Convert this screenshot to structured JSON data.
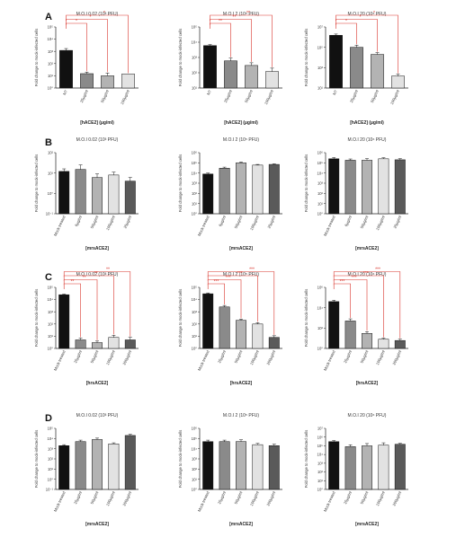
{
  "figure": {
    "rows": [
      {
        "letter": "A",
        "x_title": "[hACE2] (µg/ml)",
        "panels": [
          {
            "type": "bar",
            "title": "M.O.I 0.02 (10³ PFU)",
            "ylabel": "Fold change to mock-infected cells",
            "log_scale": true,
            "ylim": [
              1,
              100000
            ],
            "yticks": [
              "10⁰",
              "10¹",
              "10²",
              "10³",
              "10⁴",
              "10⁵"
            ],
            "categories": [
              "NT",
              "25µg/ml",
              "50µg/ml",
              "100µg/ml"
            ],
            "values": [
              1200,
              15,
              10,
              14
            ],
            "errors": [
              500,
              5,
              7,
              0
            ],
            "significance": [
              {
                "from": 0,
                "to": 1,
                "label": "*"
              },
              {
                "from": 0,
                "to": 2,
                "label": "*"
              },
              {
                "from": 0,
                "to": 3,
                "label": "*"
              }
            ]
          },
          {
            "type": "bar",
            "title": "M.O.I 2 (10⁵ PFU)",
            "ylabel": "Fold change to mock-infected cells",
            "log_scale": true,
            "ylim": [
              10,
              100000
            ],
            "yticks": [
              "10¹",
              "10²",
              "10³",
              "10⁴",
              "10⁵"
            ],
            "categories": [
              "NT",
              "25µg/ml",
              "50µg/ml",
              "100µg/ml"
            ],
            "values": [
              6000,
              600,
              300,
              120
            ],
            "errors": [
              1000,
              300,
              150,
              80
            ],
            "significance": [
              {
                "from": 0,
                "to": 1,
                "label": "**"
              },
              {
                "from": 0,
                "to": 2,
                "label": "**"
              },
              {
                "from": 0,
                "to": 3,
                "label": "**"
              }
            ]
          },
          {
            "type": "bar",
            "title": "M.O.I 20 (10⁶ PFU)",
            "ylabel": "Fold change to mock-infected cells",
            "log_scale": true,
            "ylim": [
              10,
              10000000
            ],
            "yticks": [
              "10¹",
              "10³",
              "10⁵",
              "10⁷"
            ],
            "categories": [
              "NT",
              "25µg/ml",
              "50µg/ml",
              "100µg/ml"
            ],
            "values": [
              1500000,
              100000,
              20000,
              150
            ],
            "errors": [
              500000,
              60000,
              10000,
              80
            ],
            "significance": [
              {
                "from": 0,
                "to": 1,
                "label": "*"
              },
              {
                "from": 0,
                "to": 2,
                "label": "*"
              },
              {
                "from": 0,
                "to": 3,
                "label": "*"
              }
            ]
          }
        ]
      },
      {
        "letter": "B",
        "x_title": "[mrsACE2]",
        "panels": [
          {
            "type": "bar",
            "title": "M.O.I 0.02 (10³ PFU)",
            "ylabel": "Fold change to mock-infected cells",
            "log_scale": true,
            "ylim": [
              0.1,
              100
            ],
            "yticks": [
              "10⁻¹",
              "10⁰",
              "10¹",
              "10²"
            ],
            "categories": [
              "Mock-treated",
              "6µg/ml",
              "50µg/ml",
              "100µg/ml",
              "25µg/ml"
            ],
            "values": [
              12,
              15,
              6,
              8,
              4
            ],
            "errors": [
              4,
              10,
              3,
              3,
              2
            ],
            "significance": []
          },
          {
            "type": "bar",
            "title": "M.O.I 2 (10⁵ PFU)",
            "ylabel": "Fold change to mock-infected cells",
            "log_scale": true,
            "ylim": [
              1,
              1000000
            ],
            "yticks": [
              "10⁰",
              "10¹",
              "10²",
              "10³",
              "10⁴",
              "10⁵",
              "10⁶"
            ],
            "categories": [
              "Mock-treated",
              "6µg/ml",
              "50µg/ml",
              "100µg/ml",
              "25µg/ml"
            ],
            "values": [
              8000,
              30000,
              100000,
              60000,
              70000
            ],
            "errors": [
              2000,
              8000,
              20000,
              10000,
              10000
            ],
            "significance": []
          },
          {
            "type": "bar",
            "title": "M.O.I 20 (10⁶ PFU)",
            "ylabel": "Fold change to mock-infected cells",
            "log_scale": true,
            "ylim": [
              1,
              1000000
            ],
            "yticks": [
              "10⁰",
              "10¹",
              "10²",
              "10³",
              "10⁴",
              "10⁵",
              "10⁶"
            ],
            "categories": [
              "Mock-treated",
              "6µg/ml",
              "50µg/ml",
              "100µg/ml",
              "25µg/ml"
            ],
            "values": [
              250000,
              180000,
              180000,
              250000,
              200000
            ],
            "errors": [
              80000,
              60000,
              80000,
              70000,
              60000
            ],
            "significance": []
          }
        ]
      },
      {
        "letter": "C",
        "x_title": "[hrsACE2]",
        "panels": [
          {
            "type": "bar",
            "title": "M.O.I 0.02 (10³ PFU)",
            "ylabel": "Fold change to mock-infected cells",
            "log_scale": true,
            "ylim": [
              1,
              100000
            ],
            "yticks": [
              "10⁰",
              "10¹",
              "10²",
              "10³",
              "10⁴",
              "10⁵"
            ],
            "categories": [
              "Mock-treated",
              "25µg/ml",
              "50µg/ml",
              "100µg/ml",
              "200µg/ml"
            ],
            "values": [
              25000,
              5,
              3,
              8,
              5
            ],
            "errors": [
              3000,
              2,
              1,
              4,
              3
            ],
            "significance": [
              {
                "from": 0,
                "to": 1,
                "label": "**"
              },
              {
                "from": 0,
                "to": 2,
                "label": "**"
              },
              {
                "from": 0,
                "to": 3,
                "label": "**"
              },
              {
                "from": 0,
                "to": 4,
                "label": "**"
              }
            ]
          },
          {
            "type": "bar",
            "title": "M.O.I 2 (10⁵ PFU)",
            "ylabel": "Fold change to mock-infected cells",
            "log_scale": true,
            "ylim": [
              1,
              100000
            ],
            "yticks": [
              "10⁰",
              "10¹",
              "10²",
              "10³",
              "10⁴",
              "10⁵"
            ],
            "categories": [
              "Mock-treated",
              "25µg/ml",
              "50µg/ml",
              "100µg/ml",
              "200µg/ml"
            ],
            "values": [
              30000,
              2500,
              200,
              100,
              8
            ],
            "errors": [
              5000,
              800,
              50,
              30,
              3
            ],
            "significance": [
              {
                "from": 0,
                "to": 1,
                "label": "***"
              },
              {
                "from": 0,
                "to": 2,
                "label": "***"
              },
              {
                "from": 0,
                "to": 3,
                "label": "***"
              },
              {
                "from": 0,
                "to": 4,
                "label": "***"
              }
            ]
          },
          {
            "type": "bar",
            "title": "M.O.I 20 (10⁶ PFU)",
            "ylabel": "Fold change to mock-infected cells",
            "log_scale": true,
            "ylim": [
              1,
              1000000
            ],
            "yticks": [
              "10⁰",
              "10²",
              "10⁴",
              "10⁶"
            ],
            "categories": [
              "Mock-treated",
              "25µg/ml",
              "50µg/ml",
              "100µg/ml",
              "200µg/ml"
            ],
            "values": [
              40000,
              500,
              30,
              8,
              6
            ],
            "errors": [
              15000,
              300,
              15,
              2,
              2
            ],
            "significance": [
              {
                "from": 0,
                "to": 1,
                "label": "***"
              },
              {
                "from": 0,
                "to": 2,
                "label": "***"
              },
              {
                "from": 0,
                "to": 3,
                "label": "***"
              },
              {
                "from": 0,
                "to": 4,
                "label": "***"
              }
            ]
          }
        ]
      },
      {
        "letter": "D",
        "x_title": "[mrsACE2]",
        "panels": [
          {
            "type": "bar",
            "title": "M.O.I 0.02 (10³ PFU)",
            "ylabel": "Fold change to mock-infected cells",
            "log_scale": true,
            "ylim": [
              0.1,
              100000
            ],
            "yticks": [
              "10⁻¹",
              "10⁰",
              "10¹",
              "10²",
              "10³",
              "10⁴",
              "10⁵"
            ],
            "categories": [
              "Mock-treated",
              "25µg/ml",
              "50µg/ml",
              "100µg/ml",
              "200µg/ml"
            ],
            "values": [
              2000,
              5000,
              8000,
              3000,
              20000
            ],
            "errors": [
              500,
              2000,
              3000,
              800,
              6000
            ],
            "significance": []
          },
          {
            "type": "bar",
            "title": "M.O.I 2 (10⁵ PFU)",
            "ylabel": "Fold change to mock-infected cells",
            "log_scale": true,
            "ylim": [
              1,
              1000000
            ],
            "yticks": [
              "10⁰",
              "10¹",
              "10²",
              "10³",
              "10⁴",
              "10⁵",
              "10⁶"
            ],
            "categories": [
              "Mock-treated",
              "25µg/ml",
              "50µg/ml",
              "100µg/ml",
              "200µg/ml"
            ],
            "values": [
              50000,
              50000,
              50000,
              25000,
              20000
            ],
            "errors": [
              20000,
              20000,
              25000,
              8000,
              8000
            ],
            "significance": []
          },
          {
            "type": "bar",
            "title": "M.O.I 20 (10⁶ PFU)",
            "ylabel": "Fold change to mock-infected cells",
            "log_scale": true,
            "ylim": [
              1,
              10000000
            ],
            "yticks": [
              "10⁰",
              "10¹",
              "10²",
              "10³",
              "10⁴",
              "10⁵",
              "10⁶",
              "10⁷"
            ],
            "categories": [
              "Mock-treated",
              "25µg/ml",
              "50µg/ml",
              "100µg/ml",
              "200µg/ml"
            ],
            "values": [
              300000,
              80000,
              100000,
              120000,
              150000
            ],
            "errors": [
              100000,
              50000,
              80000,
              100000,
              40000
            ],
            "significance": []
          }
        ]
      }
    ]
  },
  "colors": {
    "bars": [
      "#111111",
      "#8a8a8a",
      "#b3b3b3",
      "#e2e2e2",
      "#5a5a5a"
    ],
    "significance": "#d9342b",
    "axis": "#222222"
  }
}
